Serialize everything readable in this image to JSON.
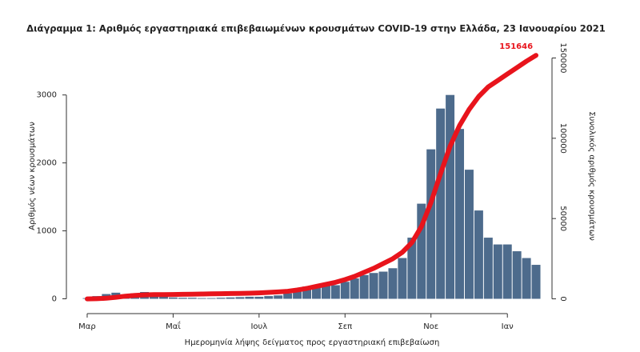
{
  "chart_data": {
    "type": "bar_line",
    "title": "Διάγραμμα 1: Αριθμός εργαστηριακά επιβεβαιωμένων κρουσμάτων COVID-19 στην Ελλάδα, 23 Ιανουαρίου 2021",
    "x_label": "Ημερομηνία λήψης δείγματος προς εργαστηριακή επιβεβαίωση",
    "y_label": "Αριθμός νέων κρουσμάτων",
    "y2_label": "Συνολικός αριθμός κρουσμάτων",
    "categories": [
      "Μαρ",
      null,
      null,
      null,
      null,
      null,
      null,
      null,
      null,
      "Μαΐ",
      null,
      null,
      null,
      null,
      null,
      null,
      null,
      null,
      "Ιουλ",
      null,
      null,
      null,
      null,
      null,
      null,
      null,
      null,
      "Σεπ",
      null,
      null,
      null,
      null,
      null,
      null,
      null,
      null,
      "Νοε",
      null,
      null,
      null,
      null,
      null,
      null,
      null,
      "Ιαν",
      null,
      null,
      null
    ],
    "series": [
      {
        "type": "bar",
        "color": "#4d6b8c",
        "values": [
          10,
          40,
          70,
          90,
          60,
          80,
          100,
          50,
          30,
          20,
          15,
          15,
          10,
          10,
          15,
          20,
          25,
          30,
          30,
          40,
          50,
          80,
          120,
          180,
          200,
          220,
          200,
          250,
          300,
          350,
          380,
          400,
          450,
          600,
          900,
          1400,
          2200,
          2800,
          3000,
          2500,
          1900,
          1300,
          900,
          800,
          800,
          700,
          600,
          500
        ]
      },
      {
        "type": "line",
        "axis": "y2",
        "color": "#e8141c",
        "label_last": true,
        "values": [
          7,
          100,
          400,
          1000,
          1700,
          2200,
          2500,
          2600,
          2650,
          2700,
          2800,
          2900,
          3000,
          3100,
          3200,
          3300,
          3400,
          3500,
          3700,
          4000,
          4300,
          4700,
          5500,
          6500,
          7800,
          9000,
          10300,
          12000,
          14000,
          16500,
          19000,
          22000,
          25000,
          29000,
          35000,
          45000,
          60000,
          78000,
          95000,
          108000,
          118000,
          126000,
          132000,
          136000,
          140000,
          144000,
          148000,
          151646
        ]
      }
    ],
    "ylim": [
      -100,
      3750
    ],
    "yticks": [
      0,
      1000,
      2000,
      3000
    ],
    "y2lim": [
      -4200,
      158700
    ],
    "y2ticks": [
      0,
      50000,
      100000,
      150000
    ]
  }
}
